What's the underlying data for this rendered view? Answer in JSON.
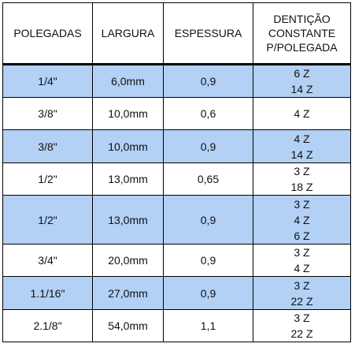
{
  "headers": [
    "POLEGADAS",
    "LARGURA",
    "ESPESSURA",
    "DENTIÇÃO\nCONSTANTE\nP/POLEGADA"
  ],
  "rows": [
    {
      "polegadas": "1/4\"",
      "largura": "6,0mm",
      "espessura": "0,9",
      "denticao": [
        "6 Z",
        "14 Z"
      ],
      "highlight": "blue"
    },
    {
      "polegadas": "3/8\"",
      "largura": "10,0mm",
      "espessura": "0,6",
      "denticao": [
        "4 Z"
      ],
      "highlight": "white"
    },
    {
      "polegadas": "3/8\"",
      "largura": "10,0mm",
      "espessura": "0,9",
      "denticao": [
        "4 Z",
        "14 Z"
      ],
      "highlight": "blue"
    },
    {
      "polegadas": "1/2\"",
      "largura": "13,0mm",
      "espessura": "0,65",
      "denticao": [
        "3 Z",
        "18 Z"
      ],
      "highlight": "white"
    },
    {
      "polegadas": "1/2\"",
      "largura": "13,0mm",
      "espessura": "0,9",
      "denticao": [
        "3 Z",
        "4 Z",
        "6 Z"
      ],
      "highlight": "blue"
    },
    {
      "polegadas": "3/4\"",
      "largura": "20,0mm",
      "espessura": "0,9",
      "denticao": [
        "3 Z",
        "4 Z"
      ],
      "highlight": "white"
    },
    {
      "polegadas": "1.1/16\"",
      "largura": "27,0mm",
      "espessura": "0,9",
      "denticao": [
        "3 Z",
        "22 Z"
      ],
      "highlight": "blue"
    },
    {
      "polegadas": "2.1/8\"",
      "largura": "54,0mm",
      "espessura": "1,1",
      "denticao": [
        "3 Z",
        "22 Z"
      ],
      "highlight": "white"
    }
  ],
  "colors": {
    "highlight_blue": "#b3d0f5",
    "white": "#ffffff",
    "border": "#000000"
  }
}
